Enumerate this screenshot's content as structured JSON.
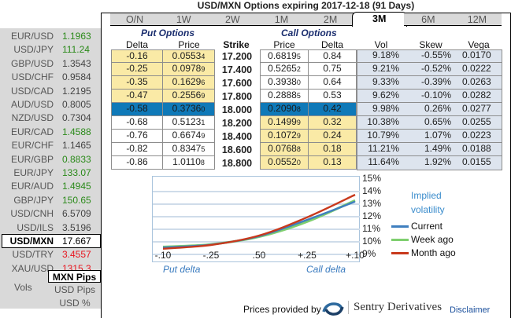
{
  "title": "USD/MXN Options expiring 2017-12-18 (91 Days)",
  "tabs": [
    {
      "label": "O/N",
      "active": false
    },
    {
      "label": "1W",
      "active": false
    },
    {
      "label": "2W",
      "active": false
    },
    {
      "label": "1M",
      "active": false
    },
    {
      "label": "2M",
      "active": false
    },
    {
      "label": "3M",
      "active": true
    },
    {
      "label": "6M",
      "active": false
    },
    {
      "label": "12M",
      "active": false
    }
  ],
  "sidebar": {
    "pairs": [
      {
        "name": "EUR/USD",
        "value": "1.1963",
        "color": "green"
      },
      {
        "name": "USD/JPY",
        "value": "111.24",
        "color": "green"
      },
      {
        "name": "GBP/USD",
        "value": "1.3543",
        "color": "neutral"
      },
      {
        "name": "USD/CHF",
        "value": "0.9584",
        "color": "neutral"
      },
      {
        "name": "USD/CAD",
        "value": "1.2195",
        "color": "neutral"
      },
      {
        "name": "AUD/USD",
        "value": "0.8005",
        "color": "neutral"
      },
      {
        "name": "NZD/USD",
        "value": "0.7304",
        "color": "neutral"
      },
      {
        "name": "EUR/CAD",
        "value": "1.4588",
        "color": "green"
      },
      {
        "name": "EUR/CHF",
        "value": "1.1465",
        "color": "neutral"
      },
      {
        "name": "EUR/GBP",
        "value": "0.8833",
        "color": "green"
      },
      {
        "name": "EUR/JPY",
        "value": "133.07",
        "color": "green"
      },
      {
        "name": "EUR/AUD",
        "value": "1.4945",
        "color": "green"
      },
      {
        "name": "GBP/JPY",
        "value": "150.65",
        "color": "green"
      },
      {
        "name": "USD/CNH",
        "value": "6.5709",
        "color": "neutral"
      },
      {
        "name": "USD/ILS",
        "value": "3.5196",
        "color": "neutral"
      },
      {
        "name": "USD/MXN",
        "value": "17.667",
        "color": "neutral",
        "selected": true
      },
      {
        "name": "USD/TRY",
        "value": "3.4557",
        "color": "red"
      },
      {
        "name": "XAU/USD",
        "value": "1315.3",
        "color": "red"
      }
    ],
    "vols_label": "Vols",
    "vol_options": [
      {
        "label": "MXN Pips",
        "active": true
      },
      {
        "label": "USD Pips",
        "active": false
      },
      {
        "label": "USD %",
        "active": false
      }
    ]
  },
  "table": {
    "put_heading": "Put Options",
    "call_heading": "Call Options",
    "headers": {
      "put_delta": "Delta",
      "put_price": "Price",
      "strike": "Strike",
      "call_price": "Price",
      "call_delta": "Delta",
      "vol": "Vol",
      "skew": "Skew",
      "vega": "Vega"
    },
    "rows": [
      {
        "put_delta": "-0.16",
        "put_price": "0.0553",
        "put_price_sub": "4",
        "strike": "17.200",
        "call_price": "0.6819",
        "call_price_sub": "5",
        "call_delta": "0.84",
        "vol": "9.18%",
        "skew": "-0.55%",
        "vega": "0.0170",
        "put_style": "yellow",
        "call_style": "white"
      },
      {
        "put_delta": "-0.25",
        "put_price": "0.0978",
        "put_price_sub": "9",
        "strike": "17.400",
        "call_price": "0.5265",
        "call_price_sub": "2",
        "call_delta": "0.75",
        "vol": "9.21%",
        "skew": "-0.52%",
        "vega": "0.0222",
        "put_style": "yellow",
        "call_style": "white"
      },
      {
        "put_delta": "-0.35",
        "put_price": "0.1629",
        "put_price_sub": "6",
        "strike": "17.600",
        "call_price": "0.3938",
        "call_price_sub": "0",
        "call_delta": "0.64",
        "vol": "9.33%",
        "skew": "-0.39%",
        "vega": "0.0263",
        "put_style": "yellow",
        "call_style": "white"
      },
      {
        "put_delta": "-0.47",
        "put_price": "0.2556",
        "put_price_sub": "9",
        "strike": "17.800",
        "call_price": "0.2888",
        "call_price_sub": "5",
        "call_delta": "0.53",
        "vol": "9.62%",
        "skew": "-0.10%",
        "vega": "0.0282",
        "put_style": "yellow",
        "call_style": "white"
      },
      {
        "put_delta": "-0.58",
        "put_price": "0.3736",
        "put_price_sub": "0",
        "strike": "18.000",
        "call_price": "0.2090",
        "call_price_sub": "8",
        "call_delta": "0.42",
        "vol": "9.98%",
        "skew": "0.26%",
        "vega": "0.0277",
        "put_style": "blue",
        "call_style": "blue"
      },
      {
        "put_delta": "-0.68",
        "put_price": "0.5123",
        "put_price_sub": "1",
        "strike": "18.200",
        "call_price": "0.1499",
        "call_price_sub": "9",
        "call_delta": "0.32",
        "vol": "10.38%",
        "skew": "0.65%",
        "vega": "0.0255",
        "put_style": "white",
        "call_style": "yellow"
      },
      {
        "put_delta": "-0.76",
        "put_price": "0.6674",
        "put_price_sub": "9",
        "strike": "18.400",
        "call_price": "0.1072",
        "call_price_sub": "9",
        "call_delta": "0.24",
        "vol": "10.79%",
        "skew": "1.07%",
        "vega": "0.0223",
        "put_style": "white",
        "call_style": "yellow"
      },
      {
        "put_delta": "-0.82",
        "put_price": "0.8347",
        "put_price_sub": "5",
        "strike": "18.600",
        "call_price": "0.0768",
        "call_price_sub": "8",
        "call_delta": "0.18",
        "vol": "11.21%",
        "skew": "1.49%",
        "vega": "0.0188",
        "put_style": "white",
        "call_style": "yellow"
      },
      {
        "put_delta": "-0.86",
        "put_price": "1.0110",
        "put_price_sub": "8",
        "strike": "18.800",
        "call_price": "0.0552",
        "call_price_sub": "0",
        "call_delta": "0.13",
        "vol": "11.64%",
        "skew": "1.92%",
        "vega": "0.0155",
        "put_style": "white",
        "call_style": "yellow"
      }
    ]
  },
  "colors": {
    "put_itm": "#faeaa6",
    "atm_highlight": "#0f79b8",
    "vol_block": "#dde4ee",
    "current": "#3f7fbf",
    "week_ago": "#7fcf6f",
    "month_ago": "#c8391c"
  },
  "chart_data": {
    "type": "line",
    "title": "Implied volatility",
    "categories": [
      "-.10",
      "-.25",
      ".50",
      "+.25",
      "+.10"
    ],
    "xlabel_left": "Put delta",
    "xlabel_right": "Call delta",
    "y_ticks": [
      "9%",
      "10%",
      "11%",
      "12%",
      "13%",
      "14%",
      "15%"
    ],
    "ylim": [
      9,
      15
    ],
    "grid": true,
    "legend_position": "right",
    "series": [
      {
        "name": "Current",
        "color": "#3f7fbf",
        "values": [
          9.55,
          9.78,
          10.45,
          11.75,
          13.2
        ]
      },
      {
        "name": "Week ago",
        "color": "#7fcf6f",
        "values": [
          9.6,
          9.8,
          10.4,
          11.6,
          13.3
        ]
      },
      {
        "name": "Month ago",
        "color": "#c8391c",
        "values": [
          9.45,
          9.75,
          10.5,
          11.95,
          13.75
        ]
      }
    ]
  },
  "footer": {
    "provided_by": "Prices provided by",
    "provider_name": "Sentry Derivatives",
    "disclaimer": "Disclaimer"
  }
}
